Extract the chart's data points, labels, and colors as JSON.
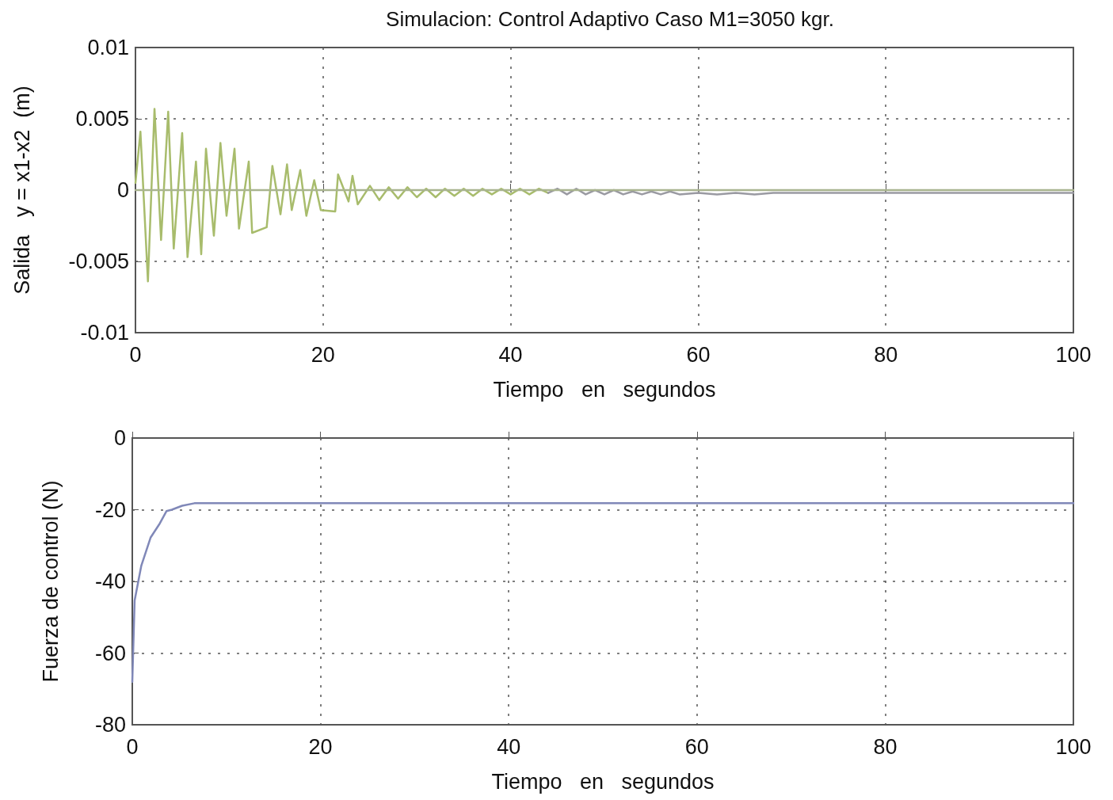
{
  "chart_data": [
    {
      "type": "line",
      "title": "Simulacion: Control Adaptivo Caso M1=3050 kgr.",
      "xlabel": "Tiempo   en   segundos",
      "ylabel": "Salida   y = x1-x2  (m)",
      "xlim": [
        0,
        100
      ],
      "ylim": [
        -0.01,
        0.01
      ],
      "xticks": [
        0,
        20,
        40,
        60,
        80,
        100
      ],
      "yticks": [
        -0.01,
        -0.005,
        0,
        0.005,
        0.01
      ],
      "grid": true,
      "line_style": "solid",
      "series": [
        {
          "color": "#a8bc6c",
          "x": [
            0,
            0.53,
            1.33,
            2.03,
            2.73,
            3.49,
            4.08,
            4.98,
            5.55,
            6.45,
            7.01,
            7.52,
            8.36,
            9.06,
            9.71,
            10.56,
            11.04,
            12.08,
            12.44,
            13.99,
            14.6,
            15.46,
            16.16,
            16.66,
            17.57,
            18.22,
            19.06,
            19.76,
            21.3,
            21.6,
            22.72,
            23.14,
            23.7,
            25,
            26,
            27,
            28,
            29,
            30,
            31,
            32,
            33,
            34,
            35,
            36,
            37,
            38,
            39,
            40,
            41,
            42,
            43,
            44
          ],
          "values": [
            0.0005,
            0.0041,
            -0.0064,
            0.0057,
            -0.0035,
            0.0055,
            -0.0041,
            0.004,
            -0.0047,
            0.002,
            -0.0045,
            0.0029,
            -0.0032,
            0.0033,
            -0.0018,
            0.0029,
            -0.0027,
            0.002,
            -0.003,
            -0.0026,
            0.0017,
            -0.0017,
            0.0018,
            -0.0014,
            0.0014,
            -0.0018,
            0.0007,
            -0.0014,
            -0.0015,
            0.0011,
            -0.0008,
            0.001,
            -0.001,
            0.0003,
            -0.0007,
            0.0002,
            -0.0006,
            0.0002,
            -0.0005,
            0.0001,
            -0.0005,
            0.0001,
            -0.0004,
            0.0001,
            -0.0004,
            0.0001,
            -0.0003,
            0.0001,
            -0.0003,
            0.0001,
            -0.0003,
            0.0001,
            -0.0002
          ]
        },
        {
          "color": "#9a9aa2",
          "x": [
            44,
            45,
            46,
            47,
            48,
            49,
            50,
            51,
            52,
            53,
            54,
            55,
            56,
            57,
            58,
            60,
            62,
            64,
            66,
            68,
            100
          ],
          "values": [
            -0.0002,
            0.0001,
            -0.0003,
            0.0001,
            -0.0003,
            0,
            -0.0003,
            0,
            -0.0003,
            -0.0001,
            -0.0003,
            -0.0001,
            -0.0003,
            -0.0001,
            -0.0003,
            -0.0002,
            -0.0003,
            -0.0002,
            -0.0003,
            -0.0002,
            -0.0002
          ]
        },
        {
          "color": "#a9b48f",
          "x": [
            0,
            100
          ],
          "values": [
            0,
            0
          ]
        }
      ]
    },
    {
      "type": "line",
      "xlabel": "Tiempo   en   segundos",
      "ylabel": "Fuerza de control (N)",
      "xlim": [
        0,
        100
      ],
      "ylim": [
        -80,
        0
      ],
      "xticks": [
        0,
        20,
        40,
        60,
        80,
        100
      ],
      "yticks": [
        -80,
        -60,
        -40,
        -20,
        0
      ],
      "grid": true,
      "line_style": "solid",
      "series": [
        {
          "color": "#8088b8",
          "x": [
            0,
            0.25,
            0.96,
            1.94,
            2.93,
            3.63,
            4.2,
            5.3,
            6.6,
            100
          ],
          "values": [
            -68,
            -45.3,
            -35.6,
            -27.8,
            -23.8,
            -20.4,
            -20,
            -18.9,
            -18.2,
            -18.2
          ]
        }
      ]
    }
  ]
}
